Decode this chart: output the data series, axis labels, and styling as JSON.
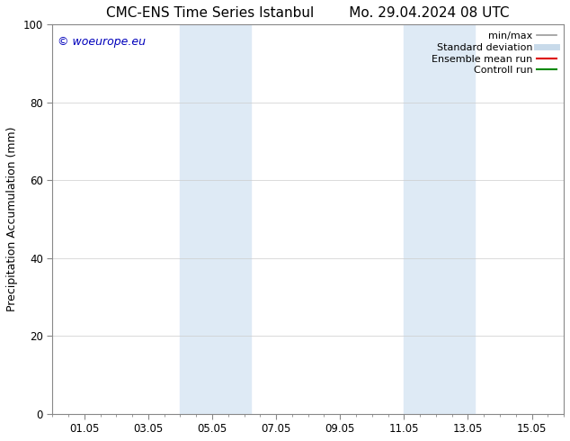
{
  "title_left": "CMC-ENS Time Series Istanbul",
  "title_right": "Mo. 29.04.2024 08 UTC",
  "ylabel": "Precipitation Accumulation (mm)",
  "ylim": [
    0,
    100
  ],
  "xlim": [
    0.0,
    16.0
  ],
  "xtick_labels": [
    "01.05",
    "03.05",
    "05.05",
    "07.05",
    "09.05",
    "11.05",
    "13.05",
    "15.05"
  ],
  "xtick_positions": [
    1,
    3,
    5,
    7,
    9,
    11,
    13,
    15
  ],
  "ytick_positions": [
    0,
    20,
    40,
    60,
    80,
    100
  ],
  "bg_color": "#ffffff",
  "plot_bg_color": "#ffffff",
  "shaded_bands": [
    {
      "x_start": 4.0,
      "x_end": 5.5,
      "color": "#deeaf5"
    },
    {
      "x_start": 5.5,
      "x_end": 6.2,
      "color": "#deeaf5"
    },
    {
      "x_start": 11.0,
      "x_end": 12.0,
      "color": "#deeaf5"
    },
    {
      "x_start": 12.0,
      "x_end": 13.2,
      "color": "#deeaf5"
    }
  ],
  "copyright_text": "© woeurope.eu",
  "copyright_color": "#0000bb",
  "legend_items": [
    {
      "label": "min/max",
      "color": "#999999",
      "lw": 1.2,
      "style": "solid"
    },
    {
      "label": "Standard deviation",
      "color": "#c8daea",
      "lw": 5,
      "style": "solid"
    },
    {
      "label": "Ensemble mean run",
      "color": "#dd0000",
      "lw": 1.5,
      "style": "solid"
    },
    {
      "label": "Controll run",
      "color": "#008800",
      "lw": 1.5,
      "style": "solid"
    }
  ],
  "grid_color": "#cccccc",
  "title_fontsize": 11,
  "label_fontsize": 9,
  "tick_fontsize": 8.5,
  "legend_fontsize": 8
}
